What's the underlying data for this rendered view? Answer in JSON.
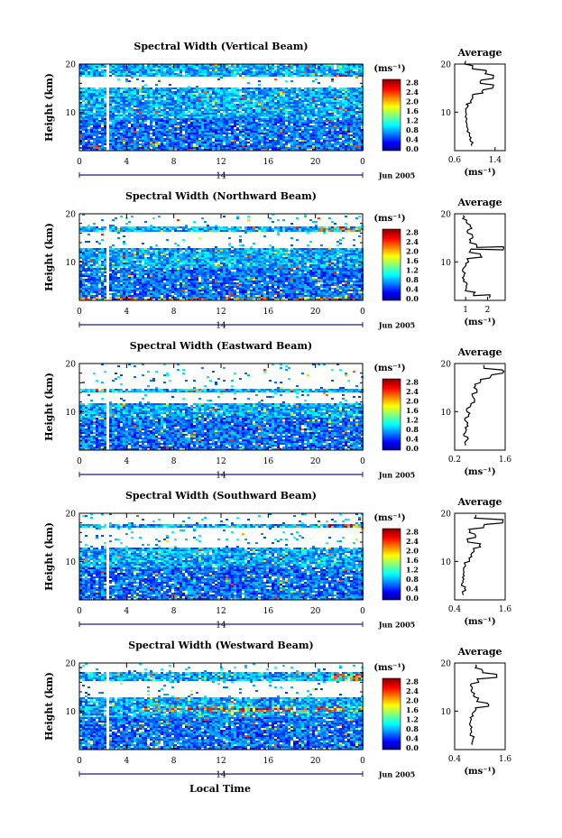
{
  "figure": {
    "xlabel": "Local Time",
    "colorbar_unit": "(ms⁻¹)",
    "colorbar_ticks": [
      "2.8",
      "2.4",
      "2.0",
      "1.6",
      "1.2",
      "0.8",
      "0.4",
      "0.0"
    ],
    "x_ticks": [
      "0",
      "4",
      "8",
      "12",
      "16",
      "20",
      "0"
    ],
    "day_label": "14",
    "month_label": "Jun 2005",
    "y_ticks": [
      "20",
      "10"
    ],
    "ylabel": "Height (km)",
    "avg_title": "Average",
    "avg_xlabel": "(ms⁻¹)"
  },
  "chart_data": [
    {
      "type": "heatmap",
      "title": "Spectral Width (Vertical Beam)",
      "xlabel": "Local Time",
      "ylabel": "Height (km)",
      "xlim": [
        0,
        24
      ],
      "ylim": [
        2,
        20
      ],
      "clim": [
        0.0,
        3.0
      ],
      "gap_hours": [
        2.2,
        2.5
      ],
      "blank_height_bands_km": [
        [
          15.2,
          17.5
        ]
      ],
      "high_width_regions": [
        {
          "hours": [
            20,
            24
          ],
          "height_km": [
            17,
            18
          ]
        }
      ],
      "average_profile": {
        "title": "Average",
        "xlabel": "(ms⁻¹)",
        "xlim": [
          0.6,
          1.6
        ],
        "x_ticks": [
          "0.6",
          "1.4"
        ],
        "height_km": [
          3,
          4,
          5,
          6,
          7,
          8,
          9,
          10,
          11,
          12,
          13,
          14,
          15,
          16,
          17,
          18,
          19,
          20
        ],
        "width_ms": [
          0.95,
          0.92,
          0.9,
          0.86,
          0.85,
          0.84,
          0.83,
          0.82,
          0.85,
          0.92,
          0.95,
          1.15,
          1.35,
          1.12,
          1.38,
          1.22,
          0.95,
          0.8
        ]
      }
    },
    {
      "type": "heatmap",
      "title": "Spectral Width (Northward Beam)",
      "xlabel": "Local Time",
      "ylabel": "Height (km)",
      "xlim": [
        0,
        24
      ],
      "ylim": [
        2,
        20
      ],
      "clim": [
        0.0,
        3.0
      ],
      "gap_hours": [
        2.2,
        2.5
      ],
      "blank_height_bands_km": [
        [
          13,
          16.5
        ],
        [
          17.5,
          20
        ]
      ],
      "high_width_regions": [
        {
          "hours": [
            0,
            24
          ],
          "height_km": [
            2,
            3
          ]
        },
        {
          "hours": [
            20,
            24
          ],
          "height_km": [
            16.5,
            17.5
          ]
        }
      ],
      "average_profile": {
        "title": "Average",
        "xlabel": "(ms⁻¹)",
        "xlim": [
          0.5,
          2.8
        ],
        "x_ticks": [
          "1",
          "2"
        ],
        "height_km": [
          2.5,
          3,
          4,
          5,
          6,
          7,
          8,
          9,
          10,
          11,
          12,
          12.5,
          13,
          14,
          15,
          16,
          17,
          18,
          19
        ],
        "width_ms": [
          2.1,
          1.4,
          1.0,
          1.05,
          0.9,
          0.95,
          0.9,
          1.0,
          1.1,
          1.7,
          1.2,
          2.7,
          1.5,
          1.2,
          1.3,
          1.1,
          1.25,
          1.05,
          0.9
        ]
      }
    },
    {
      "type": "heatmap",
      "title": "Spectral Width (Eastward Beam)",
      "xlabel": "Local Time",
      "ylabel": "Height (km)",
      "xlim": [
        0,
        24
      ],
      "ylim": [
        2,
        20
      ],
      "clim": [
        0.0,
        3.0
      ],
      "gap_hours": [
        2.2,
        2.5
      ],
      "blank_height_bands_km": [
        [
          12,
          14
        ],
        [
          15,
          20
        ]
      ],
      "high_width_regions": [
        {
          "hours": [
            19,
            24
          ],
          "height_km": [
            17,
            18.5
          ]
        }
      ],
      "average_profile": {
        "title": "Average",
        "xlabel": "(ms⁻¹)",
        "xlim": [
          0.2,
          1.6
        ],
        "x_ticks": [
          "0.2",
          "1.6"
        ],
        "height_km": [
          3,
          4,
          5,
          6,
          7,
          8,
          9,
          10,
          11,
          12,
          13,
          14,
          15,
          16,
          17,
          18,
          19
        ],
        "width_ms": [
          0.5,
          0.55,
          0.48,
          0.5,
          0.55,
          0.5,
          0.6,
          0.55,
          0.65,
          0.75,
          0.7,
          0.8,
          0.75,
          0.9,
          1.2,
          1.55,
          1.0
        ]
      }
    },
    {
      "type": "heatmap",
      "title": "Spectral Width (Southward Beam)",
      "xlabel": "Local Time",
      "ylabel": "Height (km)",
      "xlim": [
        0,
        24
      ],
      "ylim": [
        2,
        20
      ],
      "clim": [
        0.0,
        3.0
      ],
      "gap_hours": [
        2.2,
        2.5
      ],
      "blank_height_bands_km": [
        [
          13,
          17
        ],
        [
          18,
          20
        ]
      ],
      "high_width_regions": [
        {
          "hours": [
            21,
            24
          ],
          "height_km": [
            17,
            18
          ]
        }
      ],
      "average_profile": {
        "title": "Average",
        "xlabel": "(ms⁻¹)",
        "xlim": [
          0.4,
          1.6
        ],
        "x_ticks": [
          "0.4",
          "1.6"
        ],
        "height_km": [
          3,
          4,
          5,
          6,
          7,
          8,
          9,
          10,
          11,
          12,
          13,
          14,
          15,
          16,
          17,
          18,
          19
        ],
        "width_ms": [
          0.6,
          0.65,
          0.58,
          0.6,
          0.62,
          0.6,
          0.65,
          0.75,
          0.8,
          0.85,
          1.0,
          0.7,
          0.9,
          0.75,
          1.1,
          1.55,
          0.9
        ]
      }
    },
    {
      "type": "heatmap",
      "title": "Spectral Width (Westward Beam)",
      "xlabel": "Local Time",
      "ylabel": "Height (km)",
      "xlim": [
        0,
        24
      ],
      "ylim": [
        2,
        20
      ],
      "clim": [
        0.0,
        3.0
      ],
      "gap_hours": [
        2.2,
        2.5
      ],
      "blank_height_bands_km": [
        [
          13,
          16.5
        ],
        [
          18.5,
          20
        ]
      ],
      "high_width_regions": [
        {
          "hours": [
            5,
            24
          ],
          "height_km": [
            10,
            11
          ]
        },
        {
          "hours": [
            21,
            24
          ],
          "height_km": [
            16.5,
            18
          ]
        }
      ],
      "average_profile": {
        "title": "Average",
        "xlabel": "(ms⁻¹)",
        "xlim": [
          0.4,
          1.6
        ],
        "x_ticks": [
          "0.4",
          "1.6"
        ],
        "height_km": [
          3,
          4,
          5,
          6,
          7,
          8,
          9,
          10,
          11,
          12,
          13,
          14,
          15,
          16,
          17,
          18,
          19
        ],
        "width_ms": [
          0.8,
          0.85,
          0.78,
          0.8,
          0.75,
          0.78,
          0.82,
          0.9,
          1.2,
          0.95,
          0.85,
          0.8,
          0.8,
          0.95,
          1.4,
          1.05,
          0.9
        ]
      }
    }
  ]
}
